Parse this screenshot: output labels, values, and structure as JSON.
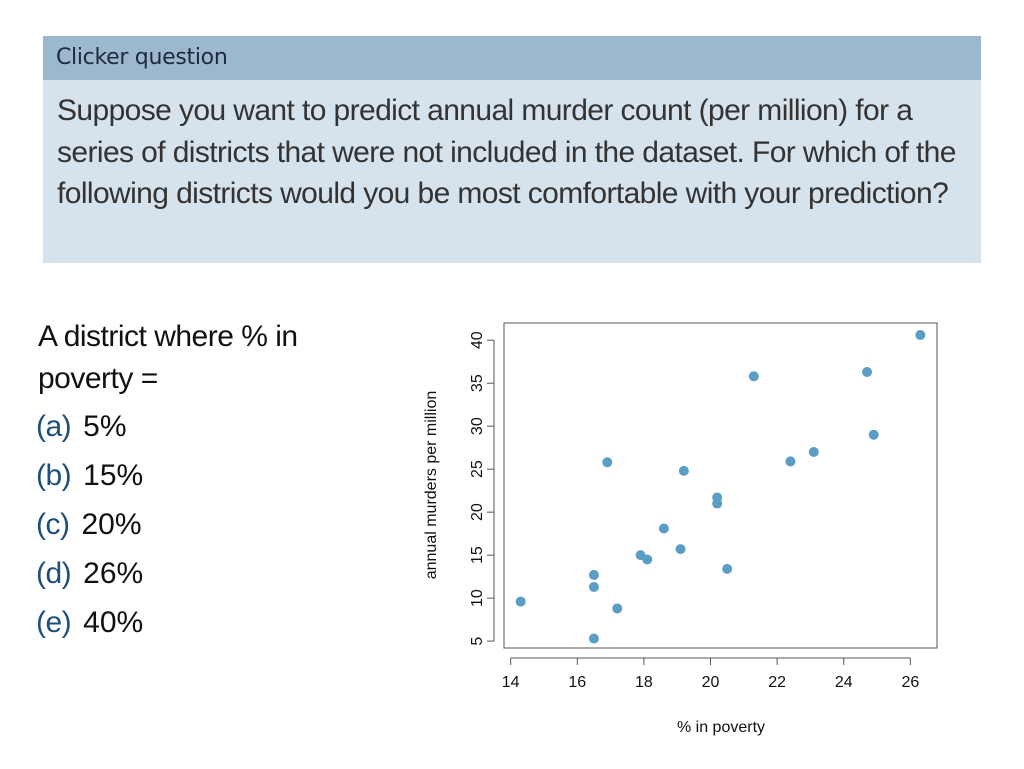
{
  "header": {
    "title": "Clicker question"
  },
  "question": {
    "text": "Suppose you want to predict annual murder count (per million) for a series of districts that were not included in the  dataset. For which of the following districts would you be most comfortable with your prediction?"
  },
  "prompt": {
    "text": "A district where % in poverty ="
  },
  "options": [
    {
      "letter": "(a)",
      "value": "5%"
    },
    {
      "letter": "(b)",
      "value": "15%"
    },
    {
      "letter": "(c)",
      "value": "20%"
    },
    {
      "letter": "(d)",
      "value": "26%"
    },
    {
      "letter": "(e)",
      "value": "40%"
    }
  ],
  "colors": {
    "header_bg": "#9cb8cf",
    "question_bg": "#d6e3ed",
    "point": "#5a9ec6",
    "option_letter": "#1e4f7a"
  },
  "chart_data": {
    "type": "scatter",
    "title": "",
    "xlabel": "% in poverty",
    "ylabel": "annual murders per million",
    "xlim": [
      13.8,
      26.8
    ],
    "ylim": [
      4.2,
      42
    ],
    "xticks": [
      14,
      16,
      18,
      20,
      22,
      24,
      26
    ],
    "yticks": [
      5,
      10,
      15,
      20,
      25,
      30,
      35,
      40
    ],
    "grid": false,
    "x": [
      14.3,
      16.5,
      16.5,
      16.5,
      16.9,
      17.2,
      17.9,
      18.1,
      18.6,
      19.1,
      19.2,
      20.2,
      20.2,
      20.5,
      21.3,
      22.4,
      23.1,
      24.7,
      24.9,
      26.3
    ],
    "y": [
      9.6,
      12.7,
      11.3,
      5.3,
      25.8,
      8.8,
      15.0,
      14.5,
      18.1,
      15.7,
      24.8,
      21.7,
      21.0,
      13.4,
      35.8,
      25.9,
      27.0,
      36.3,
      29.0,
      40.6
    ]
  }
}
